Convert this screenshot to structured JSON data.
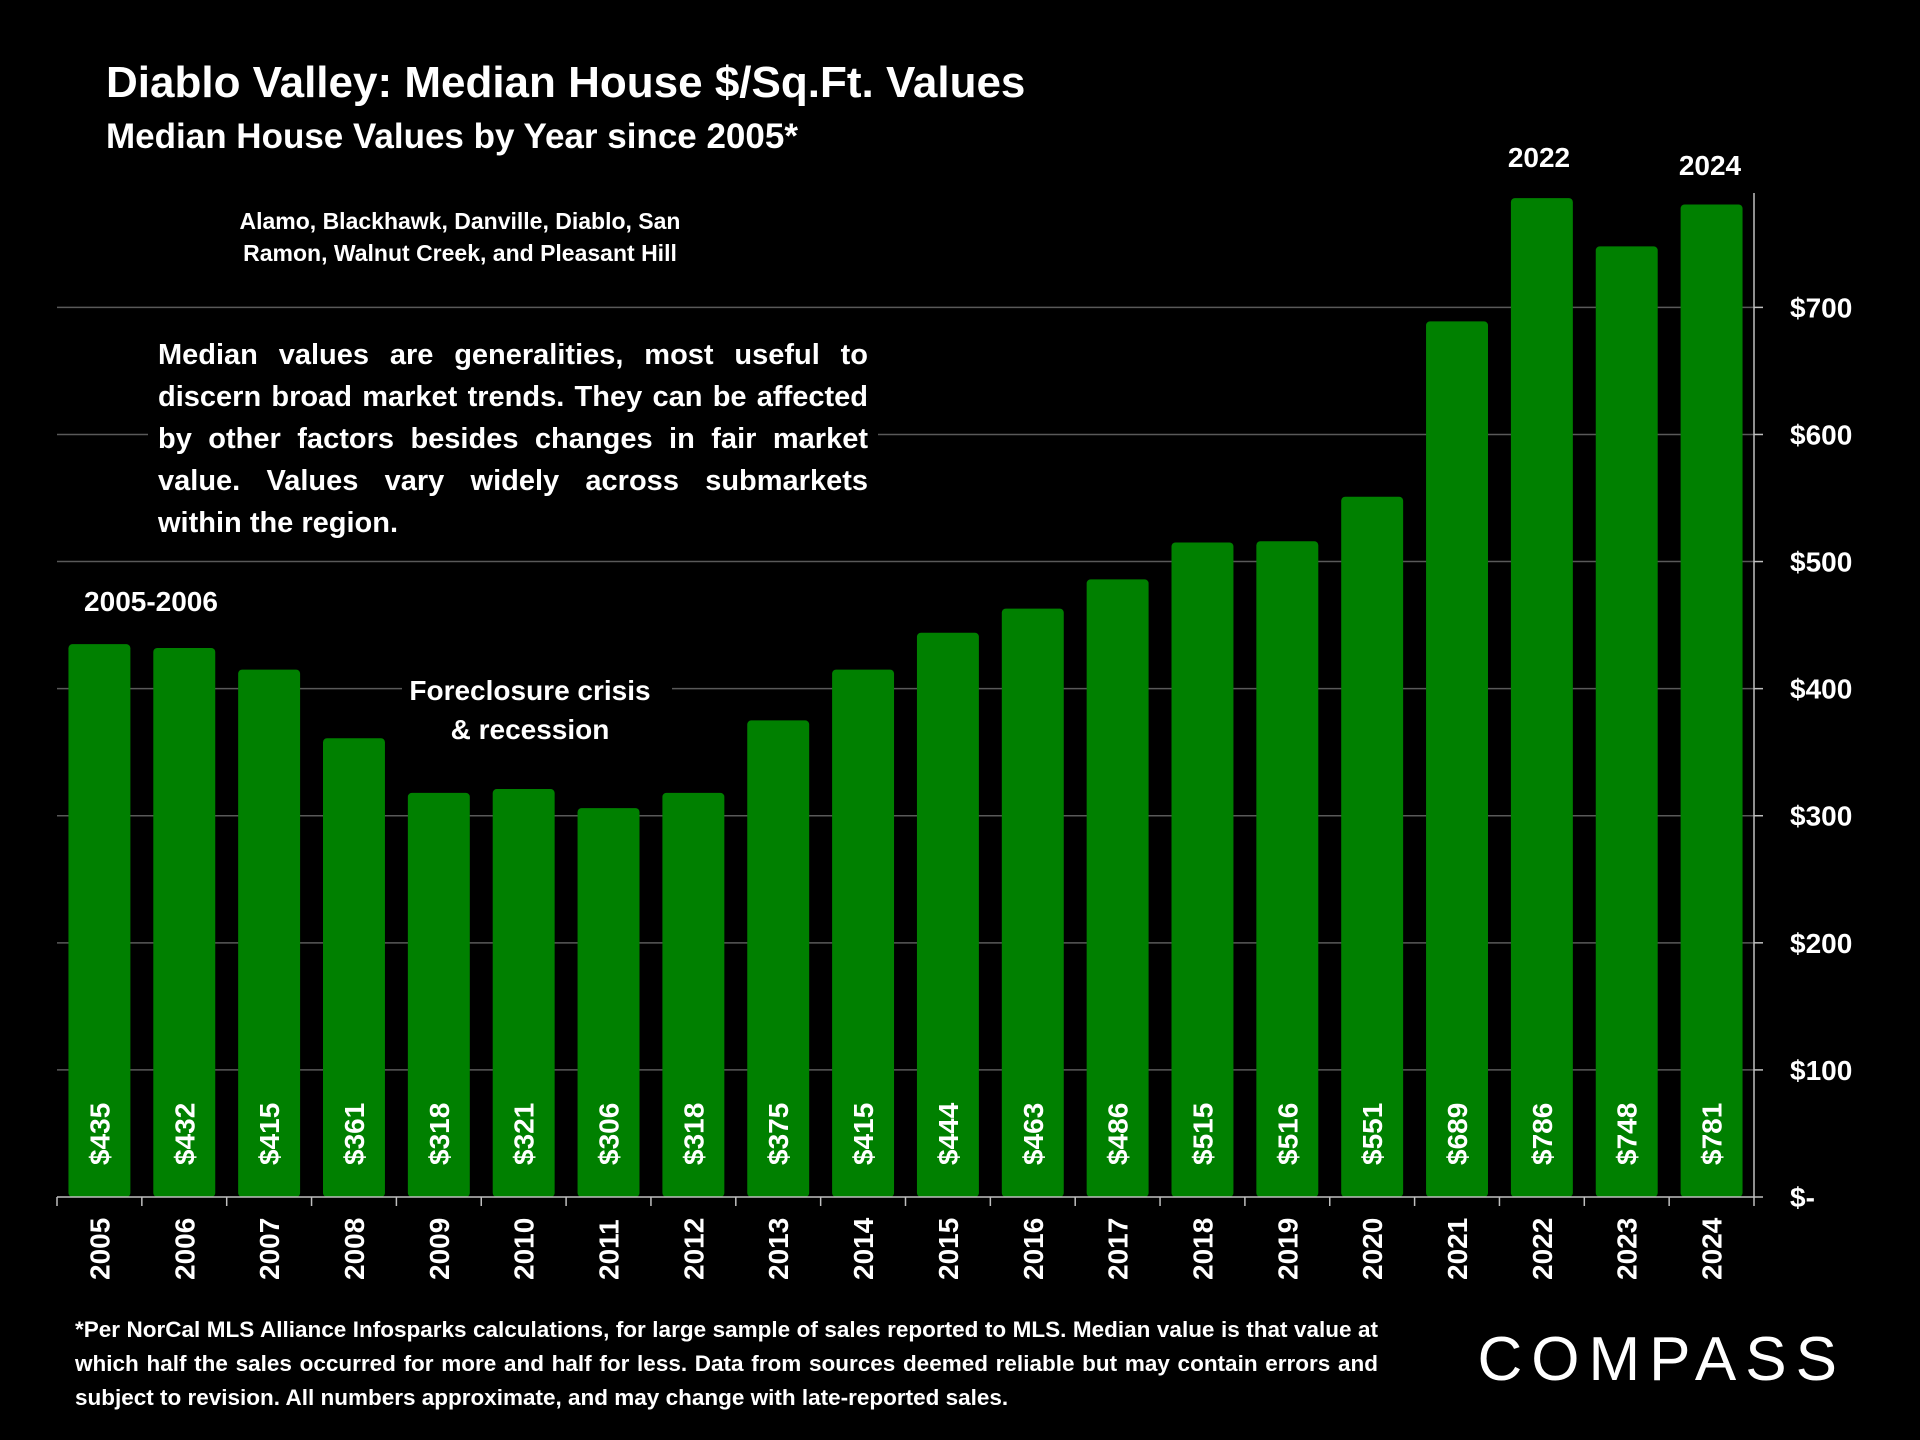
{
  "header": {
    "title": "Diablo Valley: Median House $/Sq.Ft. Values",
    "subtitle": "Median House Values by Year since 2005*"
  },
  "annotations": {
    "region": "Alamo, Blackhawk, Danville, Diablo, San Ramon, Walnut Creek, and Pleasant Hill",
    "note": "Median values are generalities, most useful to discern broad market trends. They can be affected by other factors besides changes in fair market value. Values vary widely across submarkets within the region.",
    "period_label": "2005-2006",
    "crisis_line1": "Foreclosure crisis",
    "crisis_line2": "& recession",
    "peak_label_2022": "2022",
    "peak_label_2024": "2024"
  },
  "footer": {
    "footnote": "*Per NorCal MLS Alliance Infosparks calculations, for large sample of sales reported to MLS. Median value is that value at which half the sales occurred for more and half for less. Data from sources deemed reliable but may contain errors and subject to revision. All numbers approximate, and may change with late-reported sales.",
    "logo": "COMPASS"
  },
  "chart_data": {
    "type": "bar",
    "categories": [
      "2005",
      "2006",
      "2007",
      "2008",
      "2009",
      "2010",
      "2011",
      "2012",
      "2013",
      "2014",
      "2015",
      "2016",
      "2017",
      "2018",
      "2019",
      "2020",
      "2021",
      "2022",
      "2023",
      "2024"
    ],
    "values": [
      435,
      432,
      415,
      361,
      318,
      321,
      306,
      318,
      375,
      415,
      444,
      463,
      486,
      515,
      516,
      551,
      689,
      786,
      748,
      781
    ],
    "data_labels": [
      "$435",
      "$432",
      "$415",
      "$361",
      "$318",
      "$321",
      "$306",
      "$318",
      "$375",
      "$415",
      "$444",
      "$463",
      "$486",
      "$515",
      "$516",
      "$551",
      "$689",
      "$786",
      "$748",
      "$781"
    ],
    "y_ticks": [
      0,
      100,
      200,
      300,
      400,
      500,
      600,
      700
    ],
    "y_tick_labels": [
      "$-",
      "$100",
      "$200",
      "$300",
      "$400",
      "$500",
      "$600",
      "$700"
    ],
    "ylim": [
      0,
      790
    ],
    "y_axis_side": "right",
    "grid": true,
    "colors": {
      "bar": "#008000",
      "grid": "#595959",
      "axis": "#bfbfbf",
      "background": "#000000"
    }
  }
}
